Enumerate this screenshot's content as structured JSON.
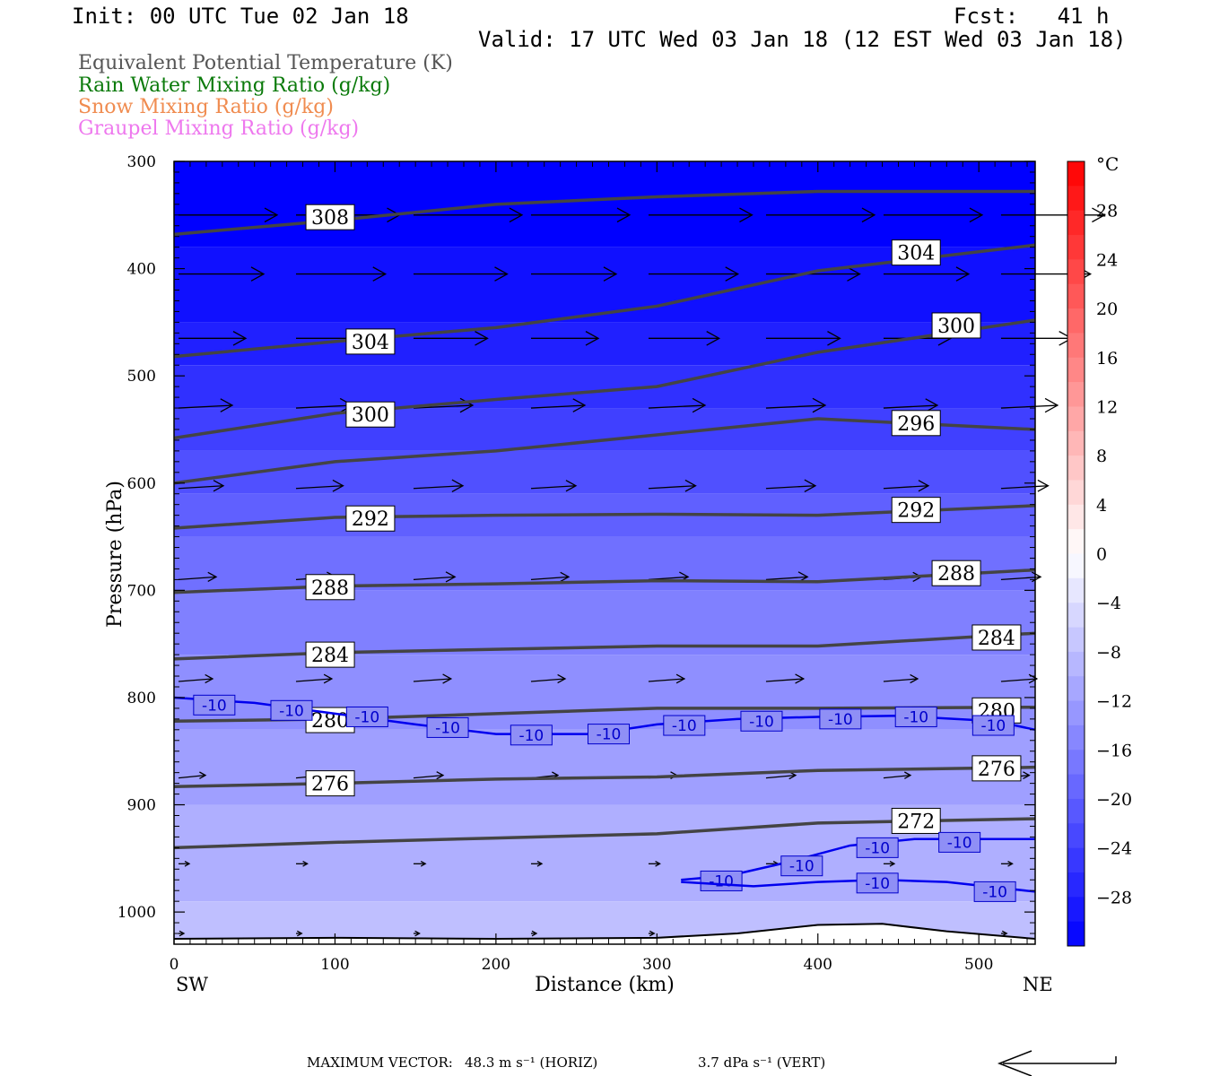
{
  "header": {
    "init": "Init: 00 UTC Tue 02 Jan 18",
    "fcst": "Fcst:   41 h",
    "valid": "Valid: 17 UTC Wed 03 Jan 18 (12 EST Wed 03 Jan 18)"
  },
  "legend": [
    {
      "text": "Equivalent Potential Temperature (K)",
      "color": "#555555"
    },
    {
      "text": "Rain Water Mixing Ratio (g/kg)",
      "color": "#0a7a0a"
    },
    {
      "text": "Snow Mixing Ratio (g/kg)",
      "color": "#f08c50"
    },
    {
      "text": "Graupel Mixing Ratio (g/kg)",
      "color": "#ee78ee"
    }
  ],
  "footer": {
    "max_vector_label": "MAXIMUM VECTOR:",
    "horiz": "48.3 m s⁻¹ (HORIZ)",
    "vert": "3.7 dPa s⁻¹ (VERT)"
  },
  "chart_data": {
    "type": "heatmap",
    "xlabel": "Distance (km)",
    "ylabel": "Pressure (hPa)",
    "x_ticks": [
      0,
      100,
      200,
      300,
      400,
      500
    ],
    "x_range": [
      0,
      535
    ],
    "y_ticks": [
      300,
      400,
      500,
      600,
      700,
      800,
      900,
      1000
    ],
    "y_range": [
      300,
      1030
    ],
    "y_scale": "linear-inverted",
    "left_end_label": "SW",
    "right_end_label": "NE",
    "colorbar": {
      "unit": "°C",
      "range": [
        -32,
        32
      ],
      "tick_labels": [
        28,
        24,
        20,
        16,
        12,
        8,
        4,
        0,
        -4,
        -8,
        -12,
        -16,
        -20,
        -24,
        -28
      ]
    },
    "temperature_fill": [
      {
        "p_top": 300,
        "p_bottom": 380,
        "temp": -32
      },
      {
        "p_top": 380,
        "p_bottom": 450,
        "temp": -30
      },
      {
        "p_top": 450,
        "p_bottom": 490,
        "temp": -28
      },
      {
        "p_top": 490,
        "p_bottom": 530,
        "temp": -26
      },
      {
        "p_top": 530,
        "p_bottom": 570,
        "temp": -24
      },
      {
        "p_top": 570,
        "p_bottom": 610,
        "temp": -22
      },
      {
        "p_top": 610,
        "p_bottom": 650,
        "temp": -20
      },
      {
        "p_top": 650,
        "p_bottom": 700,
        "temp": -18
      },
      {
        "p_top": 700,
        "p_bottom": 760,
        "temp": -16
      },
      {
        "p_top": 760,
        "p_bottom": 830,
        "temp": -14
      },
      {
        "p_top": 830,
        "p_bottom": 900,
        "temp": -12
      },
      {
        "p_top": 900,
        "p_bottom": 990,
        "temp": -10
      },
      {
        "p_top": 990,
        "p_bottom": 1030,
        "temp": -8
      }
    ],
    "theta_e_contours": [
      {
        "label": "308",
        "points": [
          [
            0,
            368
          ],
          [
            100,
            355
          ],
          [
            200,
            340
          ],
          [
            300,
            333
          ],
          [
            400,
            328
          ],
          [
            535,
            328
          ]
        ],
        "label_at": [
          97,
          352
        ]
      },
      {
        "label": "304",
        "points": [
          [
            0,
            482
          ],
          [
            100,
            468
          ],
          [
            200,
            455
          ],
          [
            300,
            435
          ],
          [
            400,
            402
          ],
          [
            535,
            378
          ]
        ],
        "label_at": [
          122,
          468
        ]
      },
      {
        "label": "304",
        "points": [],
        "label_at": [
          461,
          385
        ]
      },
      {
        "label": "300",
        "points": [
          [
            0,
            558
          ],
          [
            100,
            535
          ],
          [
            200,
            522
          ],
          [
            300,
            510
          ],
          [
            400,
            478
          ],
          [
            535,
            448
          ]
        ],
        "label_at": [
          122,
          536
        ]
      },
      {
        "label": "300",
        "points": [],
        "label_at": [
          486,
          453
        ]
      },
      {
        "label": "296",
        "points": [
          [
            0,
            600
          ],
          [
            100,
            580
          ],
          [
            200,
            570
          ],
          [
            300,
            555
          ],
          [
            400,
            540
          ],
          [
            535,
            550
          ]
        ],
        "label_at": [
          461,
          544
        ]
      },
      {
        "label": "292",
        "points": [
          [
            0,
            642
          ],
          [
            100,
            632
          ],
          [
            200,
            630
          ],
          [
            300,
            629
          ],
          [
            400,
            630
          ],
          [
            535,
            621
          ]
        ],
        "label_at": [
          122,
          633
        ]
      },
      {
        "label": "292",
        "points": [],
        "label_at": [
          461,
          625
        ]
      },
      {
        "label": "288",
        "points": [
          [
            0,
            702
          ],
          [
            100,
            696
          ],
          [
            200,
            694
          ],
          [
            300,
            691
          ],
          [
            400,
            692
          ],
          [
            535,
            681
          ]
        ],
        "label_at": [
          97,
          697
        ]
      },
      {
        "label": "288",
        "points": [],
        "label_at": [
          486,
          684
        ]
      },
      {
        "label": "284",
        "points": [
          [
            0,
            764
          ],
          [
            100,
            758
          ],
          [
            200,
            755
          ],
          [
            300,
            752
          ],
          [
            400,
            752
          ],
          [
            535,
            740
          ]
        ],
        "label_at": [
          97,
          760
        ]
      },
      {
        "label": "284",
        "points": [],
        "label_at": [
          511,
          744
        ]
      },
      {
        "label": "280",
        "points": [
          [
            0,
            822
          ],
          [
            100,
            820
          ],
          [
            200,
            815
          ],
          [
            300,
            810
          ],
          [
            400,
            810
          ],
          [
            535,
            809
          ]
        ],
        "label_at": [
          97,
          821
        ]
      },
      {
        "label": "280",
        "points": [],
        "label_at": [
          511,
          812
        ]
      },
      {
        "label": "276",
        "points": [
          [
            0,
            883
          ],
          [
            100,
            880
          ],
          [
            200,
            876
          ],
          [
            300,
            874
          ],
          [
            400,
            868
          ],
          [
            535,
            865
          ]
        ],
        "label_at": [
          97,
          880
        ]
      },
      {
        "label": "276",
        "points": [],
        "label_at": [
          511,
          866
        ]
      },
      {
        "label": "272",
        "points": [
          [
            0,
            940
          ],
          [
            100,
            935
          ],
          [
            200,
            931
          ],
          [
            300,
            927
          ],
          [
            400,
            917
          ],
          [
            535,
            913
          ]
        ],
        "label_at": [
          461,
          915
        ]
      }
    ],
    "isotherm_contours": [
      {
        "label": "-10",
        "points": [
          [
            0,
            800
          ],
          [
            50,
            805
          ],
          [
            100,
            815
          ],
          [
            150,
            825
          ],
          [
            200,
            834
          ],
          [
            260,
            834
          ],
          [
            300,
            825
          ],
          [
            350,
            820
          ],
          [
            400,
            818
          ],
          [
            450,
            817
          ],
          [
            510,
            822
          ],
          [
            535,
            830
          ]
        ],
        "labels_at": [
          [
            25,
            807
          ],
          [
            73,
            812
          ],
          [
            120,
            818
          ],
          [
            170,
            828
          ],
          [
            222,
            835
          ],
          [
            270,
            834
          ],
          [
            317,
            826
          ],
          [
            365,
            822
          ],
          [
            414,
            820
          ],
          [
            461,
            818
          ],
          [
            509,
            826
          ]
        ]
      },
      {
        "label": "-10",
        "points": [
          [
            315,
            970
          ],
          [
            345,
            966
          ],
          [
            380,
            954
          ],
          [
            420,
            938
          ],
          [
            460,
            932
          ],
          [
            500,
            932
          ],
          [
            535,
            932
          ]
        ],
        "labels_at": [
          [
            340,
            971
          ],
          [
            390,
            957
          ],
          [
            437,
            940
          ],
          [
            488,
            935
          ]
        ]
      },
      {
        "label": "-10",
        "points": [
          [
            315,
            972
          ],
          [
            360,
            976
          ],
          [
            400,
            972
          ],
          [
            440,
            970
          ],
          [
            480,
            972
          ],
          [
            535,
            981
          ]
        ],
        "labels_at": [
          [
            437,
            973
          ],
          [
            510,
            981
          ]
        ]
      }
    ],
    "surface_line_label": ""
  }
}
